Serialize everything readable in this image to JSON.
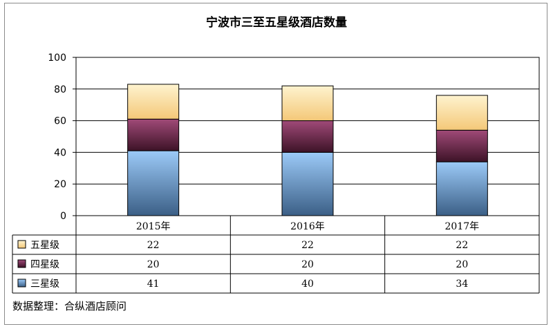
{
  "chart_data": {
    "type": "bar",
    "stacked": true,
    "title": "宁波市三至五星级酒店数量",
    "categories": [
      "2015年",
      "2016年",
      "2017年"
    ],
    "series": [
      {
        "name": "三星级",
        "values": [
          41,
          40,
          34
        ],
        "color": "#8fc3f5"
      },
      {
        "name": "四星级",
        "values": [
          20,
          20,
          20
        ],
        "color": "#8b3a62"
      },
      {
        "name": "五星级",
        "values": [
          22,
          22,
          22
        ],
        "color": "#fde7a8"
      }
    ],
    "ylim": [
      0,
      100
    ],
    "yticks": [
      0,
      20,
      40,
      60,
      80,
      100
    ],
    "grid": true,
    "legend": "data-table-left",
    "data_table_order": [
      "五星级",
      "四星级",
      "三星级"
    ]
  },
  "source": "数据整理：合纵酒店顾问"
}
